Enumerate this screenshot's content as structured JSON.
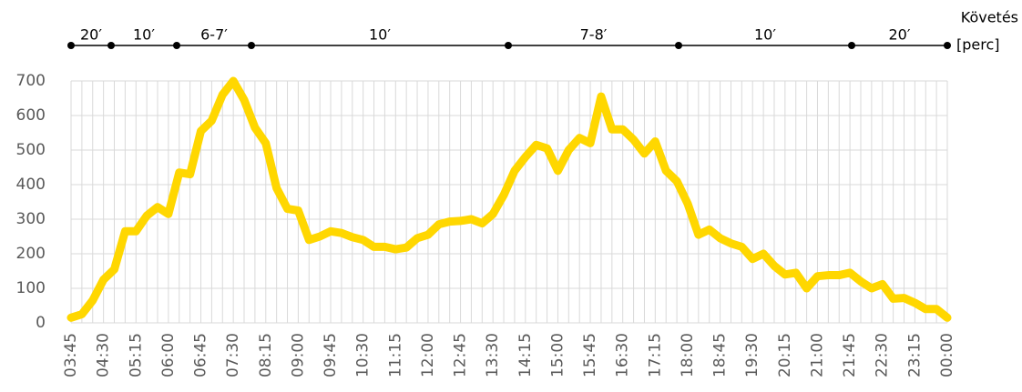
{
  "chart_data": {
    "type": "line",
    "categories": [
      "03:45",
      null,
      null,
      "04:30",
      null,
      null,
      "05:15",
      null,
      null,
      "06:00",
      null,
      null,
      "06:45",
      null,
      null,
      "07:30",
      null,
      null,
      "08:15",
      null,
      null,
      "09:00",
      null,
      null,
      "09:45",
      null,
      null,
      "10:30",
      null,
      null,
      "11:15",
      null,
      null,
      "12:00",
      null,
      null,
      "12:45",
      null,
      null,
      "13:30",
      null,
      null,
      "14:15",
      null,
      null,
      "15:00",
      null,
      null,
      "15:45",
      null,
      null,
      "16:30",
      null,
      null,
      "17:15",
      null,
      null,
      "18:00",
      null,
      null,
      "18:45",
      null,
      null,
      "19:30",
      null,
      null,
      "20:15",
      null,
      null,
      "21:00",
      null,
      null,
      "21:45",
      null,
      null,
      "22:30",
      null,
      null,
      "23:15",
      null,
      null,
      "00:00"
    ],
    "series": [
      {
        "color": "#FFD700",
        "values": [
          15,
          25,
          65,
          125,
          155,
          265,
          265,
          310,
          335,
          315,
          435,
          430,
          555,
          585,
          660,
          700,
          645,
          565,
          520,
          390,
          330,
          325,
          240,
          250,
          265,
          260,
          248,
          240,
          220,
          220,
          213,
          218,
          245,
          255,
          285,
          293,
          295,
          300,
          288,
          315,
          370,
          440,
          480,
          515,
          505,
          440,
          500,
          535,
          520,
          655,
          560,
          560,
          530,
          490,
          525,
          440,
          410,
          345,
          255,
          270,
          245,
          230,
          220,
          185,
          200,
          165,
          140,
          145,
          100,
          135,
          138,
          138,
          145,
          120,
          100,
          112,
          70,
          72,
          58,
          40,
          40,
          15
        ]
      }
    ],
    "ylim": [
      0,
      700
    ],
    "yticks": [
      0,
      100,
      200,
      300,
      400,
      500,
      600,
      700
    ],
    "grid": true,
    "headway": {
      "title": [
        "Követés",
        "[perc]"
      ],
      "segments": [
        "20′",
        "10′",
        "6-7′",
        "10′",
        "7-8′",
        "10′",
        "20′"
      ]
    }
  }
}
